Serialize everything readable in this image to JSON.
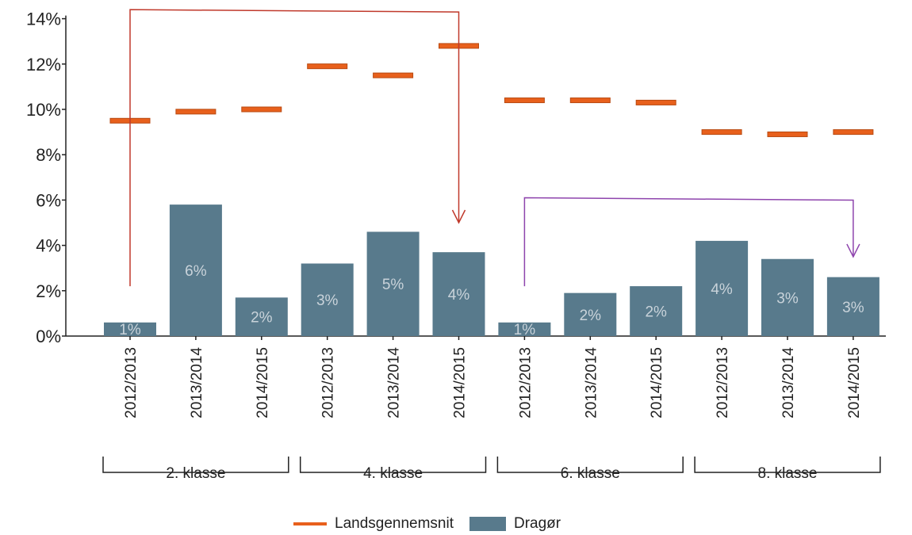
{
  "chart_data": {
    "type": "bar",
    "ylim": [
      0,
      14
    ],
    "y_ticks": [
      "0%",
      "2%",
      "4%",
      "6%",
      "8%",
      "10%",
      "12%",
      "14%"
    ],
    "y_tick_values": [
      0,
      2,
      4,
      6,
      8,
      10,
      12,
      14
    ],
    "categories": [
      "2012/2013",
      "2013/2014",
      "2014/2015",
      "2012/2013",
      "2013/2014",
      "2014/2015",
      "2012/2013",
      "2013/2014",
      "2014/2015",
      "2012/2013",
      "2013/2014",
      "2014/2015"
    ],
    "groups": [
      {
        "label": "2. klasse",
        "start": 0,
        "end": 2
      },
      {
        "label": "4. klasse",
        "start": 3,
        "end": 5
      },
      {
        "label": "6. klasse",
        "start": 6,
        "end": 8
      },
      {
        "label": "8. klasse",
        "start": 9,
        "end": 11
      }
    ],
    "series": [
      {
        "name": "Dragør",
        "kind": "bar",
        "color": "#587a8c",
        "values": [
          0.6,
          5.8,
          1.7,
          3.2,
          4.6,
          3.7,
          0.6,
          1.9,
          2.2,
          4.2,
          3.4,
          2.6
        ],
        "data_labels": [
          "1%",
          "6%",
          "2%",
          "3%",
          "5%",
          "4%",
          "1%",
          "2%",
          "2%",
          "4%",
          "3%",
          "3%"
        ]
      },
      {
        "name": "Landsgennemsnit",
        "kind": "marker",
        "color": "#e8601c",
        "values": [
          9.5,
          9.9,
          10.0,
          11.9,
          11.5,
          12.8,
          10.4,
          10.4,
          10.3,
          9.0,
          8.9,
          9.0
        ]
      }
    ],
    "annotations": [
      {
        "type": "arrow",
        "color": "#c0392b",
        "from_index": 0,
        "to_index": 5,
        "from_value": 2.2,
        "top_value": 14.4,
        "to_value": 5.0
      },
      {
        "type": "arrow",
        "color": "#8e44ad",
        "from_index": 6,
        "to_index": 11,
        "from_value": 2.2,
        "top_value": 6.1,
        "to_value": 3.5
      }
    ],
    "legend": {
      "position": "bottom"
    },
    "grid": false
  }
}
